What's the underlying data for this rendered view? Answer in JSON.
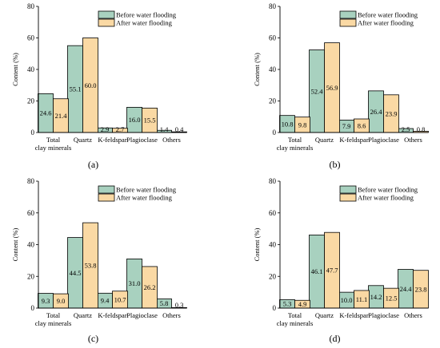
{
  "figure": {
    "legend_placement": "top-right",
    "colors": {
      "before": "#a8d1bf",
      "after": "#fad9a4",
      "stroke": "#000000"
    }
  },
  "chart_data": [
    {
      "panel_label": "(a)",
      "type": "bar",
      "ylabel": "Content (%)",
      "ylim": [
        0,
        80
      ],
      "yticks": [
        0,
        20,
        40,
        60,
        80
      ],
      "categories": [
        "Total\nclay minerals",
        "Quartz",
        "K-feldspar",
        "Plagioclase",
        "Others"
      ],
      "series": [
        {
          "name": "Before water flooding",
          "values": [
            24.6,
            55.1,
            2.9,
            16.0,
            1.4
          ]
        },
        {
          "name": "After water flooding",
          "values": [
            21.4,
            60.0,
            2.7,
            15.5,
            0.4
          ]
        }
      ]
    },
    {
      "panel_label": "(b)",
      "type": "bar",
      "ylabel": "Content (%)",
      "ylim": [
        0,
        80
      ],
      "yticks": [
        0,
        20,
        40,
        60,
        80
      ],
      "categories": [
        "Total\nclay minerals",
        "Quartz",
        "K-feldspar",
        "Plagioclase",
        "Others"
      ],
      "series": [
        {
          "name": "Before water flooding",
          "values": [
            10.8,
            52.4,
            7.9,
            26.4,
            2.5
          ]
        },
        {
          "name": "After water flooding",
          "values": [
            9.8,
            56.9,
            8.6,
            23.9,
            0.8
          ]
        }
      ]
    },
    {
      "panel_label": "(c)",
      "type": "bar",
      "ylabel": "Content (%)",
      "ylim": [
        0,
        80
      ],
      "yticks": [
        0,
        20,
        40,
        60,
        80
      ],
      "categories": [
        "Total\nclay minerals",
        "Quartz",
        "K-feldspar",
        "Plagioclase",
        "Others"
      ],
      "series": [
        {
          "name": "Before water flooding",
          "values": [
            9.3,
            44.5,
            9.4,
            31.0,
            5.8
          ]
        },
        {
          "name": "After water flooding",
          "values": [
            9.0,
            53.8,
            10.7,
            26.2,
            0.3
          ]
        }
      ]
    },
    {
      "panel_label": "(d)",
      "type": "bar",
      "ylabel": "Content (%)",
      "ylim": [
        0,
        80
      ],
      "yticks": [
        0,
        20,
        40,
        60,
        80
      ],
      "categories": [
        "Total\nclay minerals",
        "Quartz",
        "K-feldspar",
        "Plagioclase",
        "Others"
      ],
      "series": [
        {
          "name": "Before water flooding",
          "values": [
            5.3,
            46.1,
            10.0,
            14.2,
            24.4
          ]
        },
        {
          "name": "After water flooding",
          "values": [
            4.9,
            47.7,
            11.1,
            12.5,
            23.8
          ]
        }
      ]
    }
  ]
}
